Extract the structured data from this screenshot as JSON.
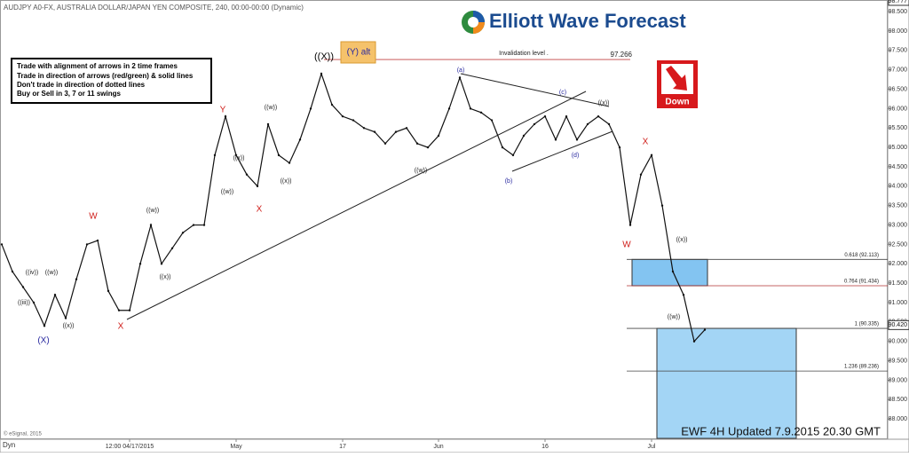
{
  "chart_data": {
    "type": "line",
    "title": "AUDJPY A0-FX, AUSTRALIA DOLLAR/JAPAN YEN COMPOSITE, 240, 00:00-00:00 (Dynamic)",
    "logo": "Elliott Wave Forecast",
    "instructions": [
      "Trade with alignment of arrows in 2 time frames",
      "Trade in direction of arrows (red/green) & solid lines",
      "Don't trade in direction of dotted lines",
      "Buy or Sell in 3, 7 or 11 swings"
    ],
    "direction": "Down",
    "footer": "EWF 4H Updated 7.9.2015 20.30 GMT",
    "copyright": "© eSignal, 2015",
    "mode": "Dyn",
    "color": "#111111",
    "grid": false,
    "categories": [
      null,
      null,
      null,
      null,
      null,
      null,
      null,
      null,
      null,
      null,
      null,
      null,
      "12:00 04/17/2015",
      null,
      null,
      null,
      null,
      null,
      null,
      null,
      null,
      null,
      "May",
      null,
      null,
      null,
      null,
      null,
      null,
      null,
      null,
      null,
      "17",
      null,
      null,
      null,
      null,
      null,
      null,
      null,
      null,
      "Jun",
      null,
      null,
      null,
      null,
      null,
      null,
      null,
      null,
      null,
      "16",
      null,
      null,
      null,
      null,
      null,
      null,
      null,
      null,
      null,
      "Jul",
      null,
      null,
      null,
      null,
      null
    ],
    "values": [
      92.5,
      91.8,
      91.4,
      91.0,
      90.4,
      91.2,
      90.6,
      91.6,
      92.5,
      92.6,
      91.3,
      90.8,
      90.8,
      92.0,
      93.0,
      92.0,
      92.4,
      92.8,
      93.0,
      93.0,
      94.8,
      95.8,
      94.8,
      94.3,
      94.0,
      95.6,
      94.8,
      94.6,
      95.2,
      96.0,
      96.9,
      96.1,
      95.8,
      95.7,
      95.5,
      95.4,
      95.1,
      95.4,
      95.5,
      95.1,
      95.0,
      95.3,
      96.0,
      96.8,
      96.0,
      95.9,
      95.7,
      95.0,
      94.8,
      95.3,
      95.6,
      95.8,
      95.2,
      95.8,
      95.2,
      95.6,
      95.8,
      95.6,
      95.0,
      93.0,
      94.3,
      94.8,
      93.5,
      91.8,
      91.2,
      90.0,
      90.3
    ],
    "ylim": [
      87.5,
      98.8
    ],
    "yticks": [
      {
        "value": 88,
        "label": "88.000"
      },
      {
        "value": 88.5,
        "label": "88.500"
      },
      {
        "value": 89,
        "label": "89.000"
      },
      {
        "value": 89.5,
        "label": "89.500"
      },
      {
        "value": 90,
        "label": "90.000"
      },
      {
        "value": 90.5,
        "label": "90.500"
      },
      {
        "value": 91,
        "label": "91.000"
      },
      {
        "value": 91.5,
        "label": "91.500"
      },
      {
        "value": 92,
        "label": "92.000"
      },
      {
        "value": 92.5,
        "label": "92.500"
      },
      {
        "value": 93,
        "label": "93.000"
      },
      {
        "value": 93.5,
        "label": "93.500"
      },
      {
        "value": 94,
        "label": "94.000"
      },
      {
        "value": 94.5,
        "label": "94.500"
      },
      {
        "value": 95,
        "label": "95.000"
      },
      {
        "value": 95.5,
        "label": "95.500"
      },
      {
        "value": 96,
        "label": "96.000"
      },
      {
        "value": 96.5,
        "label": "96.500"
      },
      {
        "value": 97,
        "label": "97.000"
      },
      {
        "value": 97.5,
        "label": "97.500"
      },
      {
        "value": 98,
        "label": "98.000"
      },
      {
        "value": 98.5,
        "label": "98.500"
      }
    ],
    "high_marker": {
      "value": 98.777,
      "label": "98.777"
    },
    "last_price": {
      "value": 90.42,
      "label": "90.420"
    },
    "invalidation": {
      "label": "Invalidation level .",
      "value": 97.266,
      "value_label": "97.266"
    },
    "fib_levels": [
      {
        "label": "0.618 (92.113)",
        "value": 92.113
      },
      {
        "label": "0.764 (91.434)",
        "value": 91.434
      },
      {
        "label": "1 (90.335)",
        "value": 90.335
      },
      {
        "label": "1.236 (89.236)",
        "value": 89.236
      }
    ],
    "wave_labels": [
      "W",
      "(X)",
      "X",
      "Y",
      "X",
      "((X))",
      "(Y) alt",
      "W",
      "X",
      "(a)",
      "(b)",
      "(c)",
      "(d)",
      "((w))",
      "((x))",
      "((x))",
      "((w))",
      "((iii))",
      "((iv))",
      "((w))",
      "((x))",
      "((w))",
      "((x))",
      "((w))",
      "((x))",
      "((w))",
      "((x))"
    ]
  }
}
